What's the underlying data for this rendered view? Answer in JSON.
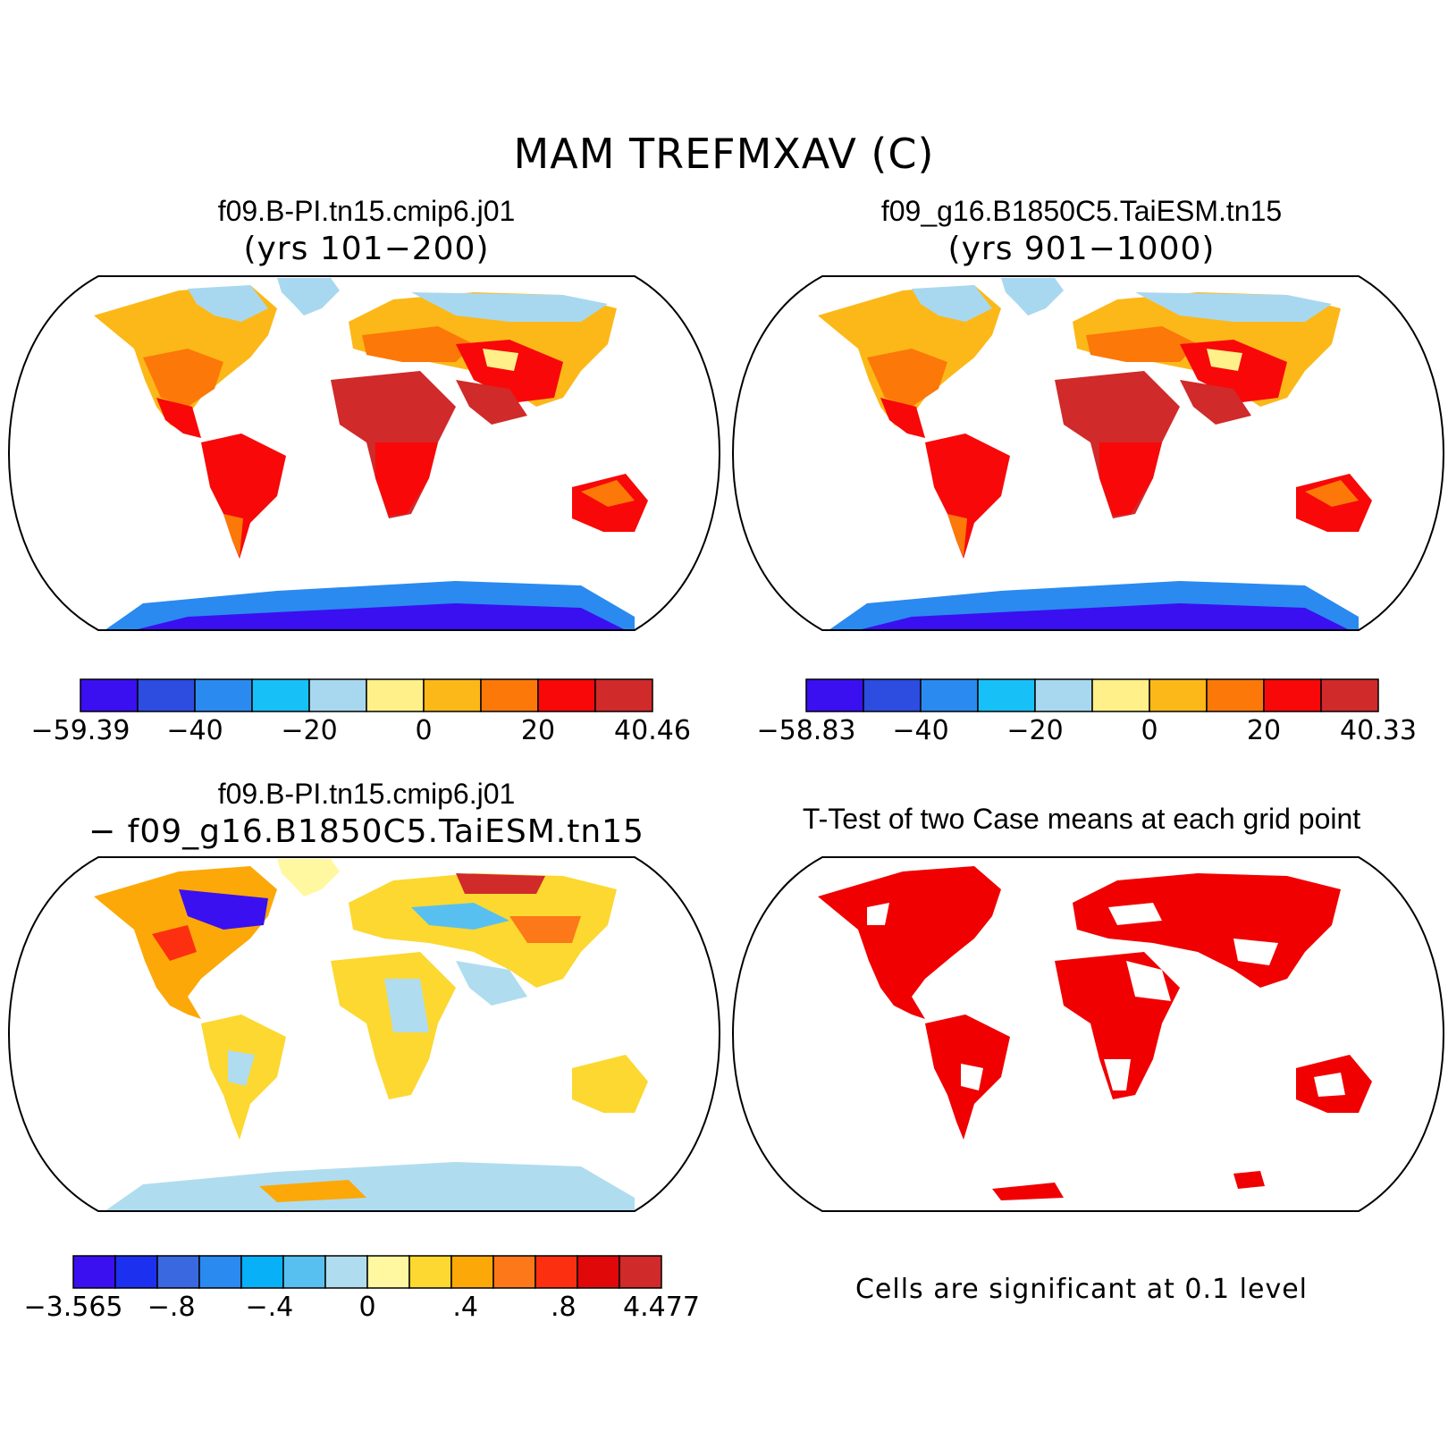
{
  "figure": {
    "title": "MAM TREFMXAV (C)"
  },
  "panels": {
    "top_left": {
      "case": "f09.B-PI.tn15.cmip6.j01",
      "years": "(yrs 101−200)"
    },
    "top_right": {
      "case": "f09_g16.B1850C5.TaiESM.tn15",
      "years": "(yrs 901−1000)"
    },
    "bottom_left": {
      "case": "f09.B-PI.tn15.cmip6.j01",
      "minus_case": "− f09_g16.B1850C5.TaiESM.tn15"
    },
    "bottom_right": {
      "title": "T-Test of two Case means at each grid point",
      "note": "Cells are significant at 0.1 level"
    }
  },
  "colorbars": {
    "top_left": {
      "colors": [
        "#3a10f0",
        "#2c4de0",
        "#2a8af0",
        "#18c0f8",
        "#a8d8f0",
        "#fff08a",
        "#fcb818",
        "#fc7808",
        "#f80808",
        "#d02a2a"
      ],
      "ticks": [
        "−59.39",
        "−40",
        "−20",
        "0",
        "20",
        "40.46"
      ]
    },
    "top_right": {
      "colors": [
        "#3a10f0",
        "#2c4de0",
        "#2a8af0",
        "#18c0f8",
        "#a8d8f0",
        "#fff08a",
        "#fcb818",
        "#fc7808",
        "#f80808",
        "#d02a2a"
      ],
      "ticks": [
        "−58.83",
        "−40",
        "−20",
        "0",
        "20",
        "40.33"
      ]
    },
    "bottom_left": {
      "colors": [
        "#3a10f0",
        "#1c30f0",
        "#3a68e0",
        "#2a8af0",
        "#08b0f8",
        "#58c0f0",
        "#b0dcf0",
        "#fff8a0",
        "#fcd830",
        "#fca808",
        "#fc7818",
        "#fc3010",
        "#e00808",
        "#d02a2a"
      ],
      "ticks": [
        "−3.565",
        "−.8",
        "−.4",
        "0",
        ".4",
        ".8",
        "4.477"
      ]
    }
  }
}
